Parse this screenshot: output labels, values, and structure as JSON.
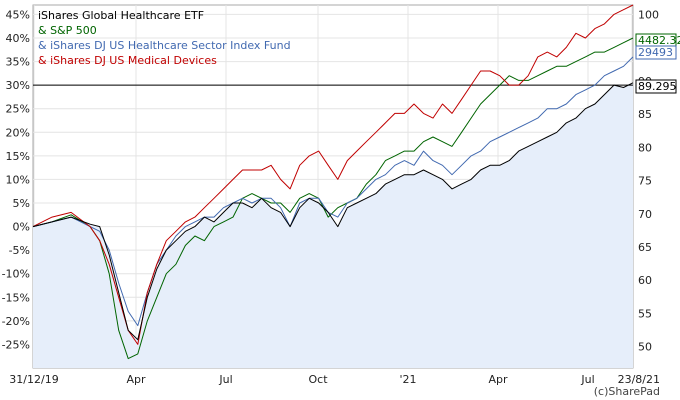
{
  "chart_data": {
    "type": "line",
    "title": "",
    "legend": {
      "placement": "top-left",
      "entries": [
        {
          "label": "iShares Global Healthcare ETF",
          "color": "#000000"
        },
        {
          "label": "& S&P 500",
          "color": "#006400"
        },
        {
          "label": "& iShares DJ US Healthcare Sector Index Fund",
          "color": "#4169b0"
        },
        {
          "label": "& iShares DJ US Medical Devices",
          "color": "#c00000"
        }
      ]
    },
    "x_tick_labels": [
      "31/12/19",
      "Apr",
      "Jul",
      "Oct",
      "'21",
      "Apr",
      "Jul",
      "23/8/21"
    ],
    "left_axis": {
      "ticks": [
        "45%",
        "40%",
        "35%",
        "30%",
        "25%",
        "20%",
        "15%",
        "10%",
        "5%",
        "0%",
        "-5%",
        "-10%",
        "-15%",
        "-20%",
        "-25%"
      ],
      "ylim": [
        -30,
        47
      ]
    },
    "right_axis": {
      "ticks": [
        "100",
        "95",
        "90",
        "85",
        "80",
        "75",
        "70",
        "65",
        "60",
        "55",
        "50"
      ],
      "ylim": [
        46.8,
        101.4
      ]
    },
    "reference_line": {
      "percent": 30
    },
    "end_labels": [
      {
        "text": "4482.32",
        "color": "#006400"
      },
      {
        "text": "29493",
        "color": "#4169b0"
      },
      {
        "text": "89.295",
        "color": "#000000"
      }
    ],
    "watermark": "(c)SharePad",
    "grid": true,
    "area_fill": "#e6eefa",
    "series": [
      {
        "name": "iShares Global Healthcare ETF",
        "color": "#000000",
        "points": [
          [
            0,
            0
          ],
          [
            2,
            1
          ],
          [
            4,
            2
          ],
          [
            6,
            0.5
          ],
          [
            7,
            0
          ],
          [
            8,
            -6
          ],
          [
            9,
            -14
          ],
          [
            10,
            -22
          ],
          [
            11,
            -24
          ],
          [
            12,
            -15
          ],
          [
            13,
            -9
          ],
          [
            14,
            -5
          ],
          [
            15,
            -3
          ],
          [
            16,
            -1
          ],
          [
            17,
            0
          ],
          [
            18,
            2
          ],
          [
            19,
            1
          ],
          [
            20,
            3
          ],
          [
            21,
            5
          ],
          [
            22,
            5
          ],
          [
            23,
            4
          ],
          [
            24,
            6
          ],
          [
            25,
            4
          ],
          [
            26,
            3
          ],
          [
            27,
            0
          ],
          [
            28,
            4
          ],
          [
            29,
            6
          ],
          [
            30,
            5
          ],
          [
            31,
            3
          ],
          [
            32,
            0
          ],
          [
            33,
            4
          ],
          [
            34,
            5
          ],
          [
            35,
            6
          ],
          [
            36,
            7
          ],
          [
            37,
            9
          ],
          [
            38,
            10
          ],
          [
            39,
            11
          ],
          [
            40,
            11
          ],
          [
            41,
            12
          ],
          [
            42,
            11
          ],
          [
            43,
            10
          ],
          [
            44,
            8
          ],
          [
            45,
            9
          ],
          [
            46,
            10
          ],
          [
            47,
            12
          ],
          [
            48,
            13
          ],
          [
            49,
            13
          ],
          [
            50,
            14
          ],
          [
            51,
            16
          ],
          [
            52,
            17
          ],
          [
            53,
            18
          ],
          [
            54,
            19
          ],
          [
            55,
            20
          ],
          [
            56,
            22
          ],
          [
            57,
            23
          ],
          [
            58,
            25
          ],
          [
            59,
            26
          ],
          [
            60,
            28
          ],
          [
            61,
            30
          ],
          [
            62,
            29.5
          ],
          [
            63,
            30.5
          ]
        ]
      },
      {
        "name": "& S&P 500",
        "color": "#006400",
        "points": [
          [
            0,
            0
          ],
          [
            2,
            1
          ],
          [
            4,
            2.5
          ],
          [
            6,
            0
          ],
          [
            7,
            -3
          ],
          [
            8,
            -10
          ],
          [
            9,
            -22
          ],
          [
            10,
            -28
          ],
          [
            11,
            -27
          ],
          [
            12,
            -20
          ],
          [
            13,
            -15
          ],
          [
            14,
            -10
          ],
          [
            15,
            -8
          ],
          [
            16,
            -4
          ],
          [
            17,
            -2
          ],
          [
            18,
            -3
          ],
          [
            19,
            0
          ],
          [
            20,
            1
          ],
          [
            21,
            2
          ],
          [
            22,
            6
          ],
          [
            23,
            7
          ],
          [
            24,
            6
          ],
          [
            25,
            5
          ],
          [
            26,
            5
          ],
          [
            27,
            3
          ],
          [
            28,
            6
          ],
          [
            29,
            7
          ],
          [
            30,
            6
          ],
          [
            31,
            2
          ],
          [
            32,
            4
          ],
          [
            33,
            5
          ],
          [
            34,
            6
          ],
          [
            35,
            9
          ],
          [
            36,
            11
          ],
          [
            37,
            14
          ],
          [
            38,
            15
          ],
          [
            39,
            16
          ],
          [
            40,
            16
          ],
          [
            41,
            18
          ],
          [
            42,
            19
          ],
          [
            43,
            18
          ],
          [
            44,
            17
          ],
          [
            45,
            20
          ],
          [
            46,
            23
          ],
          [
            47,
            26
          ],
          [
            48,
            28
          ],
          [
            49,
            30
          ],
          [
            50,
            32
          ],
          [
            51,
            31
          ],
          [
            52,
            31
          ],
          [
            53,
            32
          ],
          [
            54,
            33
          ],
          [
            55,
            34
          ],
          [
            56,
            34
          ],
          [
            57,
            35
          ],
          [
            58,
            36
          ],
          [
            59,
            37
          ],
          [
            60,
            37
          ],
          [
            61,
            38
          ],
          [
            62,
            39
          ],
          [
            63,
            40
          ]
        ]
      },
      {
        "name": "& iShares DJ US Healthcare Sector Index Fund",
        "color": "#4169b0",
        "points": [
          [
            0,
            0
          ],
          [
            2,
            1
          ],
          [
            4,
            2
          ],
          [
            6,
            0
          ],
          [
            7,
            -1
          ],
          [
            8,
            -5
          ],
          [
            9,
            -12
          ],
          [
            10,
            -18
          ],
          [
            11,
            -21
          ],
          [
            12,
            -14
          ],
          [
            13,
            -8
          ],
          [
            14,
            -5
          ],
          [
            15,
            -2
          ],
          [
            16,
            0
          ],
          [
            17,
            1
          ],
          [
            18,
            2
          ],
          [
            19,
            2
          ],
          [
            20,
            4
          ],
          [
            21,
            5
          ],
          [
            22,
            6
          ],
          [
            23,
            5
          ],
          [
            24,
            6
          ],
          [
            25,
            6
          ],
          [
            26,
            4
          ],
          [
            27,
            0
          ],
          [
            28,
            5
          ],
          [
            29,
            6
          ],
          [
            30,
            6
          ],
          [
            31,
            3
          ],
          [
            32,
            2
          ],
          [
            33,
            5
          ],
          [
            34,
            6
          ],
          [
            35,
            8
          ],
          [
            36,
            10
          ],
          [
            37,
            11
          ],
          [
            38,
            13
          ],
          [
            39,
            14
          ],
          [
            40,
            13
          ],
          [
            41,
            16
          ],
          [
            42,
            14
          ],
          [
            43,
            13
          ],
          [
            44,
            11
          ],
          [
            45,
            13
          ],
          [
            46,
            15
          ],
          [
            47,
            16
          ],
          [
            48,
            18
          ],
          [
            49,
            19
          ],
          [
            50,
            20
          ],
          [
            51,
            21
          ],
          [
            52,
            22
          ],
          [
            53,
            23
          ],
          [
            54,
            25
          ],
          [
            55,
            25
          ],
          [
            56,
            26
          ],
          [
            57,
            28
          ],
          [
            58,
            29
          ],
          [
            59,
            30
          ],
          [
            60,
            32
          ],
          [
            61,
            33
          ],
          [
            62,
            34
          ],
          [
            63,
            36
          ]
        ]
      },
      {
        "name": "& iShares DJ US Medical Devices",
        "color": "#c00000",
        "points": [
          [
            0,
            0
          ],
          [
            2,
            2
          ],
          [
            4,
            3
          ],
          [
            6,
            0
          ],
          [
            7,
            -3
          ],
          [
            8,
            -8
          ],
          [
            9,
            -15
          ],
          [
            10,
            -22
          ],
          [
            11,
            -25
          ],
          [
            12,
            -14
          ],
          [
            13,
            -8
          ],
          [
            14,
            -3
          ],
          [
            15,
            -1
          ],
          [
            16,
            1
          ],
          [
            17,
            2
          ],
          [
            18,
            4
          ],
          [
            19,
            6
          ],
          [
            20,
            8
          ],
          [
            21,
            10
          ],
          [
            22,
            12
          ],
          [
            23,
            12
          ],
          [
            24,
            12
          ],
          [
            25,
            13
          ],
          [
            26,
            10
          ],
          [
            27,
            8
          ],
          [
            28,
            13
          ],
          [
            29,
            15
          ],
          [
            30,
            16
          ],
          [
            31,
            13
          ],
          [
            32,
            10
          ],
          [
            33,
            14
          ],
          [
            34,
            16
          ],
          [
            35,
            18
          ],
          [
            36,
            20
          ],
          [
            37,
            22
          ],
          [
            38,
            24
          ],
          [
            39,
            24
          ],
          [
            40,
            26
          ],
          [
            41,
            24
          ],
          [
            42,
            23
          ],
          [
            43,
            26
          ],
          [
            44,
            24
          ],
          [
            45,
            27
          ],
          [
            46,
            30
          ],
          [
            47,
            33
          ],
          [
            48,
            33
          ],
          [
            49,
            32
          ],
          [
            50,
            30
          ],
          [
            51,
            30
          ],
          [
            52,
            32
          ],
          [
            53,
            36
          ],
          [
            54,
            37
          ],
          [
            55,
            36
          ],
          [
            56,
            38
          ],
          [
            57,
            41
          ],
          [
            58,
            40
          ],
          [
            59,
            42
          ],
          [
            60,
            43
          ],
          [
            61,
            45
          ],
          [
            62,
            46
          ],
          [
            63,
            47
          ]
        ]
      }
    ]
  }
}
